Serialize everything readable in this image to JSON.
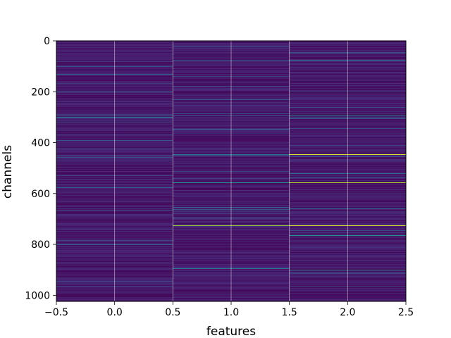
{
  "chart_data": {
    "type": "heatmap",
    "xlabel": "features",
    "ylabel": "channels",
    "xlim": [
      -0.5,
      2.5
    ],
    "ylim": [
      1024,
      0
    ],
    "y_inverted": true,
    "grid": true,
    "colormap": "viridis",
    "columns": [
      0,
      1,
      2
    ],
    "channel_count": 1024,
    "x_ticks": [
      {
        "value": -0.5,
        "label": "−0.5"
      },
      {
        "value": 0.0,
        "label": "0.0"
      },
      {
        "value": 0.5,
        "label": "0.5"
      },
      {
        "value": 1.0,
        "label": "1.0"
      },
      {
        "value": 1.5,
        "label": "1.5"
      },
      {
        "value": 2.0,
        "label": "2.0"
      },
      {
        "value": 2.5,
        "label": "2.5"
      }
    ],
    "y_ticks": [
      {
        "value": 0,
        "label": "0"
      },
      {
        "value": 200,
        "label": "200"
      },
      {
        "value": 400,
        "label": "400"
      },
      {
        "value": 600,
        "label": "600"
      },
      {
        "value": 800,
        "label": "800"
      },
      {
        "value": 1000,
        "label": "1000"
      }
    ],
    "highlights": [
      {
        "column": 0,
        "channel": 298,
        "level": 0.45
      },
      {
        "column": 0,
        "channel": 130,
        "level": 0.3
      },
      {
        "column": 0,
        "channel": 200,
        "level": 0.3
      },
      {
        "column": 0,
        "channel": 575,
        "level": 0.3
      },
      {
        "column": 0,
        "channel": 800,
        "level": 0.3
      },
      {
        "column": 1,
        "channel": 725,
        "level": 0.85
      },
      {
        "column": 1,
        "channel": 555,
        "level": 0.5
      },
      {
        "column": 1,
        "channel": 445,
        "level": 0.4
      },
      {
        "column": 1,
        "channel": 895,
        "level": 0.4
      },
      {
        "column": 1,
        "channel": 75,
        "level": 0.3
      },
      {
        "column": 1,
        "channel": 290,
        "level": 0.3
      },
      {
        "column": 2,
        "channel": 445,
        "level": 0.95
      },
      {
        "column": 2,
        "channel": 555,
        "level": 0.9
      },
      {
        "column": 2,
        "channel": 725,
        "level": 0.95
      },
      {
        "column": 2,
        "channel": 765,
        "level": 0.5
      },
      {
        "column": 2,
        "channel": 900,
        "level": 0.45
      },
      {
        "column": 2,
        "channel": 290,
        "level": 0.45
      },
      {
        "column": 2,
        "channel": 75,
        "level": 0.4
      },
      {
        "column": 2,
        "channel": 520,
        "level": 0.35
      },
      {
        "column": 2,
        "channel": 660,
        "level": 0.35
      }
    ]
  }
}
